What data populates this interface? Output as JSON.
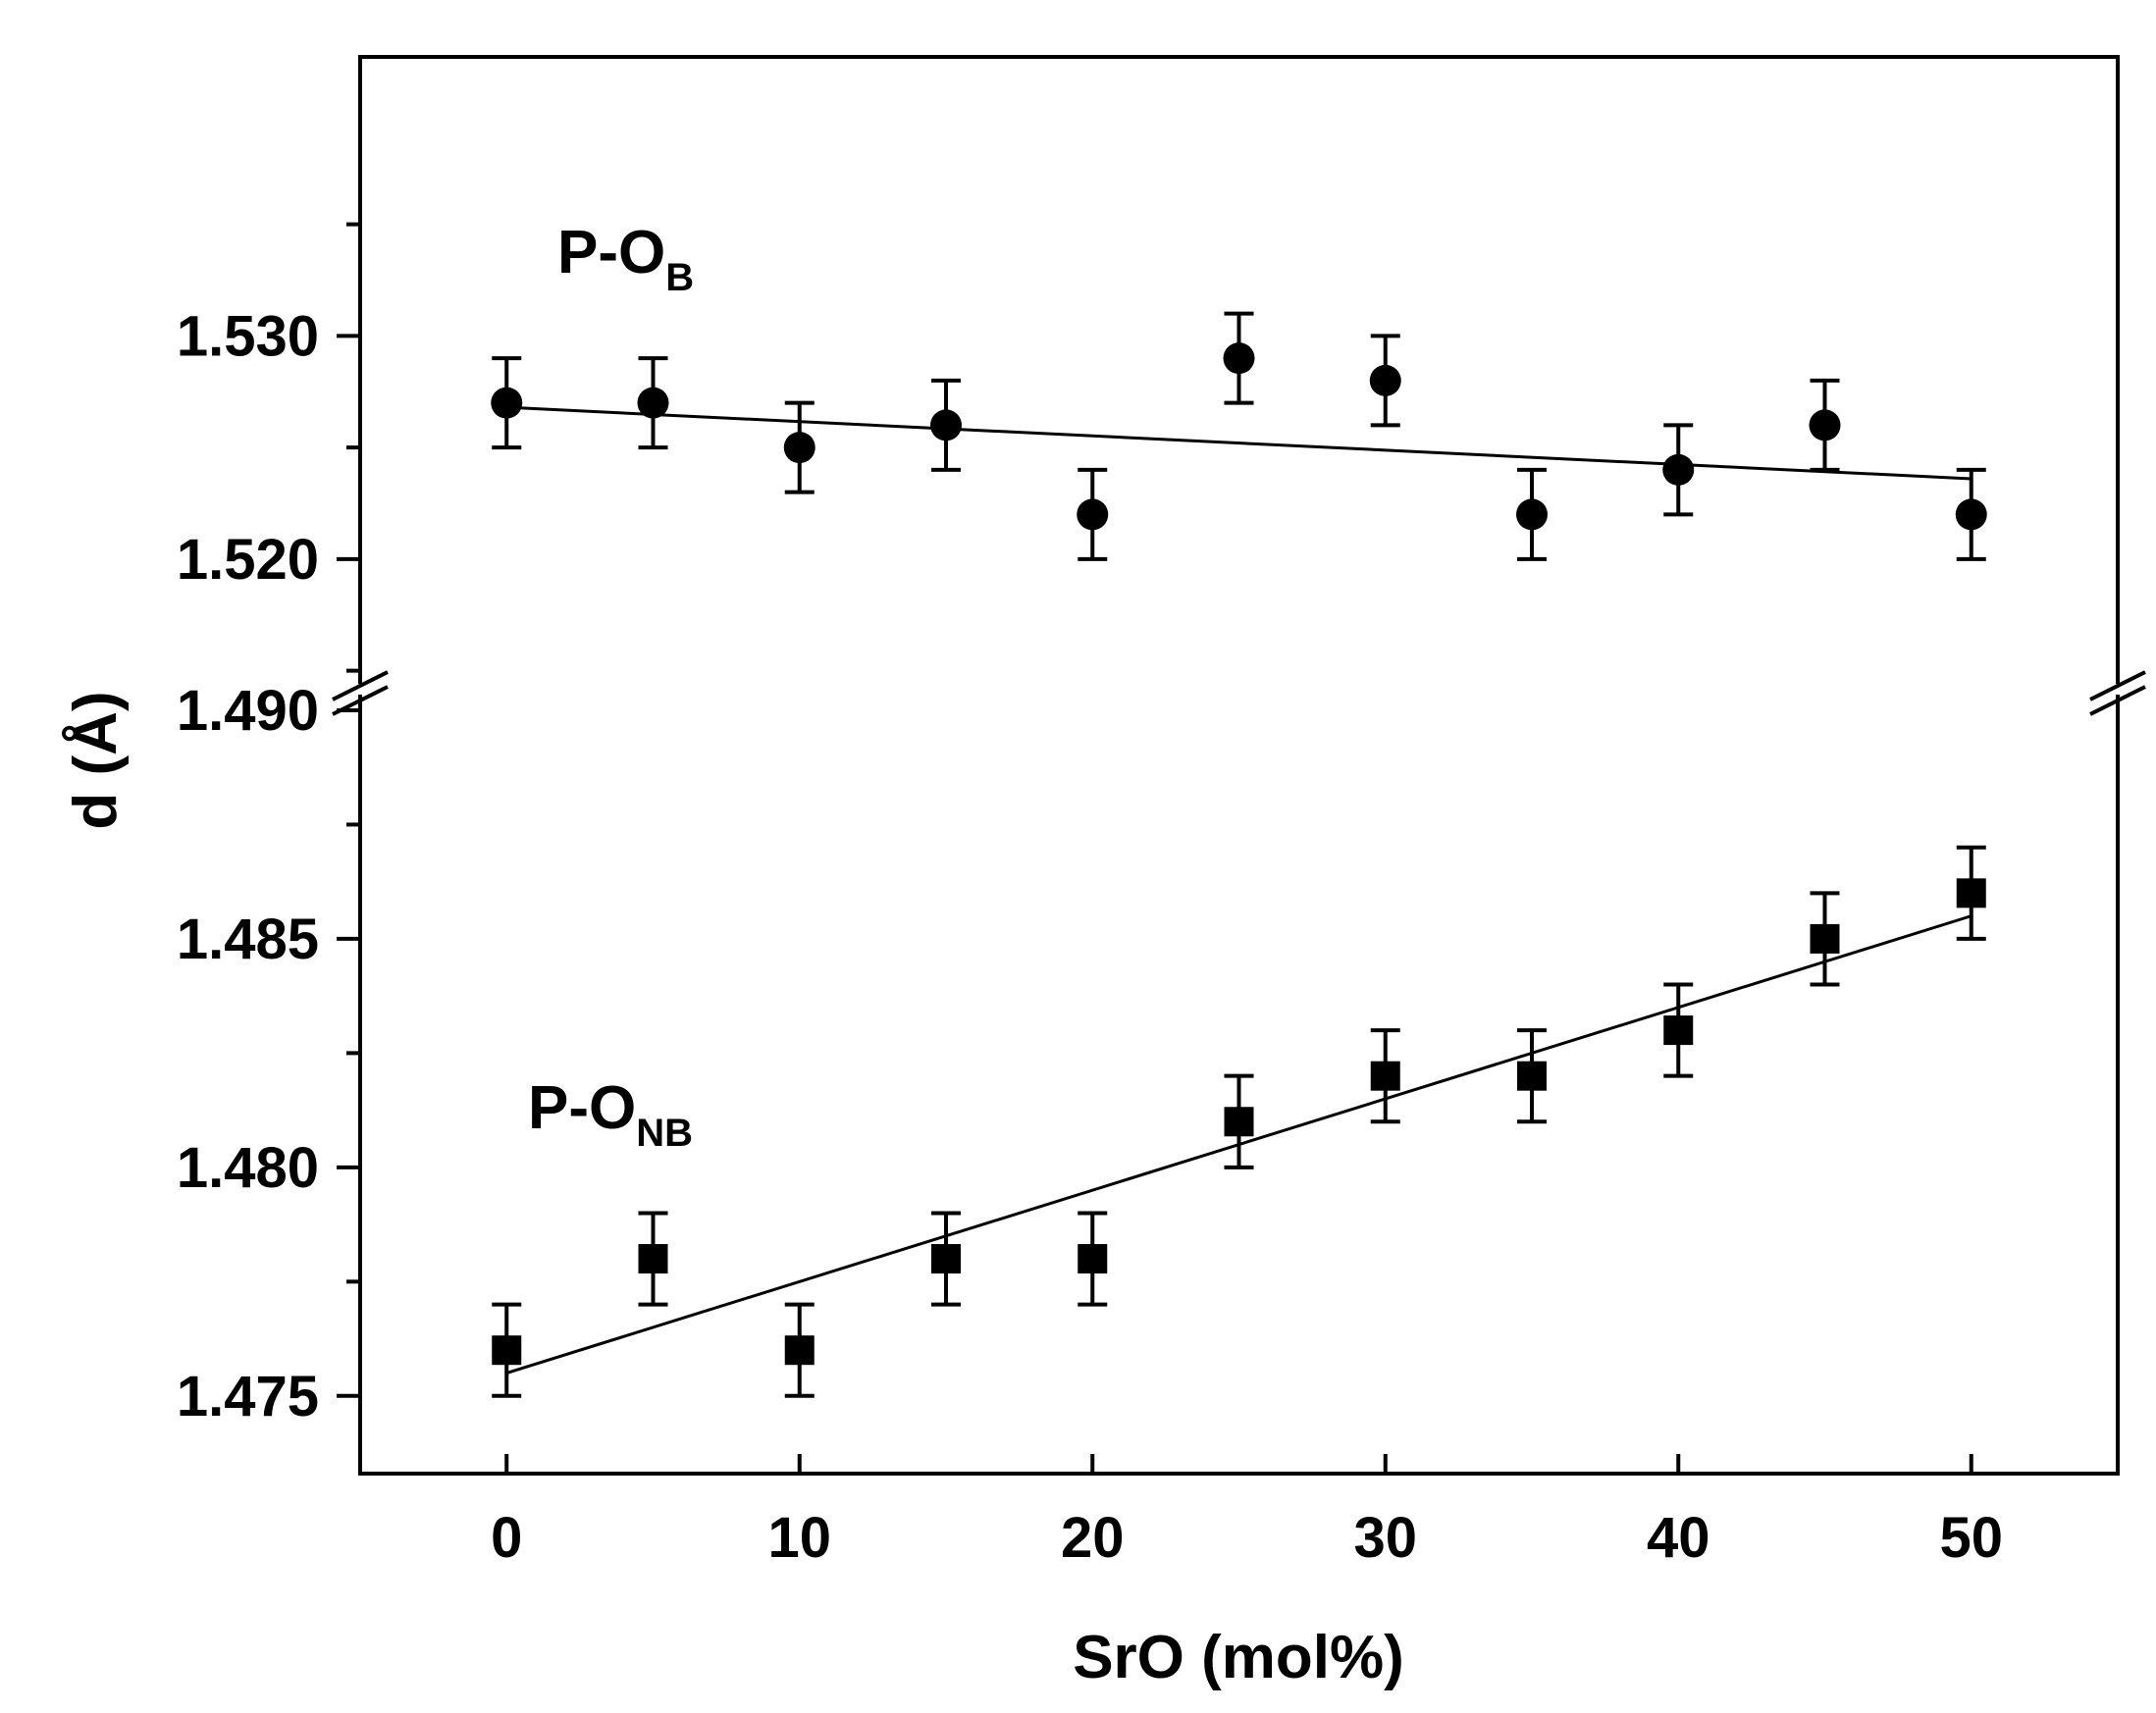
{
  "chart_data": {
    "type": "scatter",
    "xlabel": "SrO (mol%)",
    "ylabel": "d (Å)",
    "xlim": [
      -5,
      55
    ],
    "xticks": [
      0,
      10,
      20,
      30,
      40,
      50
    ],
    "x_tick_labels": [
      "0",
      "10",
      "20",
      "30",
      "40",
      "50"
    ],
    "y_break": true,
    "y_upper": {
      "ylim": [
        1.5145,
        1.5425
      ],
      "ticks": [
        1.52,
        1.53
      ],
      "tick_labels": [
        "1.520",
        "1.530"
      ],
      "minor_ticks": [
        1.515,
        1.525,
        1.535
      ]
    },
    "y_lower": {
      "ylim": [
        1.4733,
        1.4903
      ],
      "ticks": [
        1.475,
        1.48,
        1.485,
        1.49
      ],
      "tick_labels": [
        "1.475",
        "1.480",
        "1.485",
        "1.490"
      ],
      "minor_ticks": [
        1.4775,
        1.4825,
        1.4875
      ]
    },
    "grid": false,
    "series": [
      {
        "name": "P-O",
        "name_sub": "B",
        "marker": "circle",
        "panel": "upper",
        "x": [
          0,
          5,
          10,
          15,
          20,
          25,
          30,
          35,
          40,
          45,
          50
        ],
        "y": [
          1.527,
          1.527,
          1.525,
          1.526,
          1.522,
          1.529,
          1.528,
          1.522,
          1.524,
          1.526,
          1.522
        ],
        "error": [
          0.002,
          0.002,
          0.002,
          0.002,
          0.002,
          0.002,
          0.002,
          0.002,
          0.002,
          0.002,
          0.002
        ],
        "fit": {
          "x": [
            0,
            50
          ],
          "y": [
            1.5268,
            1.5236
          ]
        }
      },
      {
        "name": "P-O",
        "name_sub": "NB",
        "marker": "square",
        "panel": "lower",
        "x": [
          0,
          5,
          10,
          15,
          20,
          25,
          30,
          35,
          40,
          45,
          50
        ],
        "y": [
          1.476,
          1.478,
          1.476,
          1.478,
          1.478,
          1.481,
          1.482,
          1.482,
          1.483,
          1.485,
          1.486
        ],
        "error": [
          0.001,
          0.001,
          0.001,
          0.001,
          0.001,
          0.001,
          0.001,
          0.001,
          0.001,
          0.001,
          0.001
        ],
        "fit": {
          "x": [
            0,
            50
          ],
          "y": [
            1.4755,
            1.4855
          ]
        }
      }
    ]
  }
}
